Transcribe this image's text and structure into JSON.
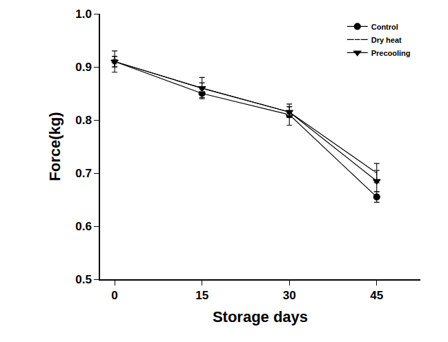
{
  "chart_data": {
    "type": "line",
    "x_label": "Storage days",
    "y_label": "Force(kg)",
    "x": [
      0,
      15,
      30,
      45
    ],
    "series": [
      {
        "name": "Control",
        "color": "#000000",
        "marker": "circle",
        "line_style": "solid",
        "values": [
          0.91,
          0.85,
          0.81,
          0.655
        ],
        "errors": [
          0.01,
          0.008,
          0.02,
          0.01
        ]
      },
      {
        "name": "Dry heat",
        "color": "#000000",
        "marker": "circle-open",
        "line_style": "solid",
        "values": [
          0.91,
          0.86,
          0.815,
          0.7
        ],
        "errors": [
          0.02,
          0.02,
          0.01,
          0.018
        ]
      },
      {
        "name": "Precooling",
        "color": "#000000",
        "marker": "triangle-down",
        "line_style": "solid",
        "values": [
          0.91,
          0.86,
          0.815,
          0.685
        ],
        "errors": [
          0.01,
          0.01,
          0.01,
          0.02
        ]
      }
    ],
    "xlim": [
      -2.5,
      52.5
    ],
    "xticks": [
      0,
      15,
      30,
      45
    ],
    "ylim": [
      0.5,
      1
    ],
    "yticks": [
      0.5,
      0.6,
      0.7,
      0.8,
      0.9,
      {
        "value": 1,
        "label": "1.0"
      }
    ],
    "grid": false,
    "legend": "top-right"
  }
}
